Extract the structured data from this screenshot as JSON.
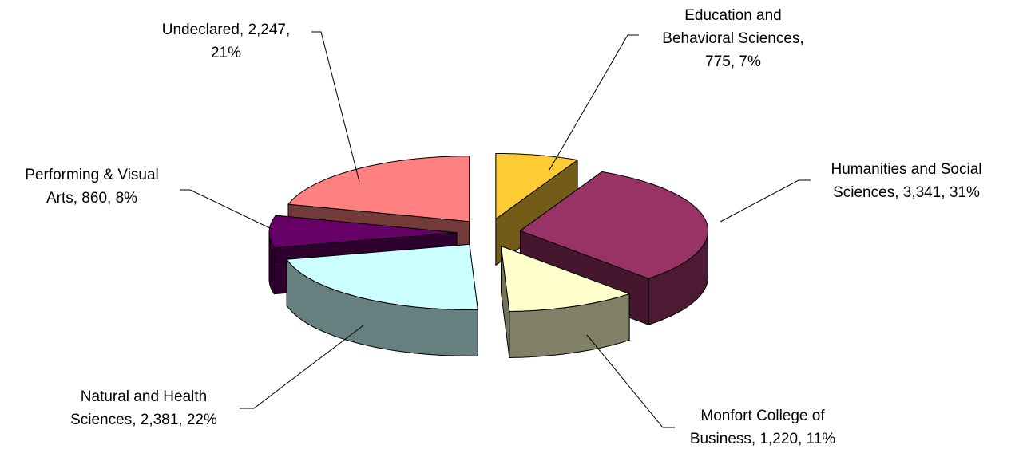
{
  "chart_data": {
    "type": "pie3d",
    "values": [
      775,
      3341,
      1220,
      2381,
      860,
      2247
    ],
    "value_labels": [
      [
        "Education and",
        "Behavioral Sciences,",
        "775, 7%"
      ],
      [
        "Humanities and Social",
        "Sciences, 3,341, 31%"
      ],
      [
        "Monfort College of",
        "Business, 1,220, 11%"
      ],
      [
        "Natural and Health",
        "Sciences, 2,381, 22%"
      ],
      [
        "Performing & Visual",
        "Arts, 860, 8%"
      ],
      [
        "Undeclared, 2,247,",
        "21%"
      ]
    ],
    "colors": [
      "#FFCC33",
      "#993366",
      "#FFFFCC",
      "#CCFFFF",
      "#660066",
      "#FF8080"
    ]
  }
}
